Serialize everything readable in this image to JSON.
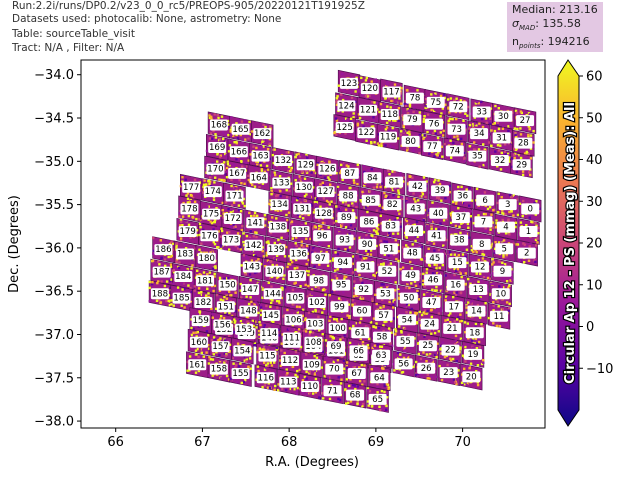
{
  "header": {
    "run": "Run:2.2i/runs/DP0.2/v23_0_0_rc5/PREOPS-905/20220121T191925Z",
    "datasets": "Datasets used: photocalib: None, astrometry: None",
    "table": "Table: sourceTable_visit",
    "tract": "Tract: N/A , Filter: N/A"
  },
  "stats": {
    "median": "Median: 213.16",
    "sigma_prefix": "σ",
    "sigma_sub": "MAD",
    "sigma_value": ": 135.58",
    "npoints_prefix": "n",
    "npoints_sub": "points",
    "npoints_value": ": 194216"
  },
  "colors": {
    "stops": [
      "#0d0887",
      "#5b02a3",
      "#9a179b",
      "#cb4678",
      "#eb7852",
      "#fbb32f",
      "#eff821"
    ],
    "vmin": -20,
    "vmax": 60
  },
  "chart_data": {
    "type": "scatter",
    "xlabel": "R.A. (Degrees)",
    "ylabel": "Dec. (Degrees)",
    "colorbar_label": "Circular Ap 12 - PS (mmag) (Meas): All",
    "xlim": [
      65.6,
      70.95
    ],
    "ylim": [
      -38.08,
      -33.83
    ],
    "xticks": [
      66,
      67,
      68,
      69,
      70
    ],
    "yticks": [
      -34.0,
      -34.5,
      -35.0,
      -35.5,
      -36.0,
      -36.5,
      -37.0,
      -37.5,
      -38.0
    ],
    "ytick_labels": [
      "−34.0",
      "−34.5",
      "−35.0",
      "−35.5",
      "−36.0",
      "−36.5",
      "−37.0",
      "−37.5",
      "−38.0"
    ],
    "colorbar_ticks": [
      -10,
      0,
      10,
      20,
      30,
      40,
      50,
      60
    ],
    "colorbar_tick_labels": [
      "−10",
      "0",
      "10",
      "20",
      "30",
      "40",
      "50",
      "60"
    ],
    "patch_ids": [
      [
        123,
        68.69,
        -34.1
      ],
      [
        120,
        68.93,
        -34.16
      ],
      [
        117,
        69.18,
        -34.2
      ],
      [
        78,
        69.45,
        -34.27
      ],
      [
        75,
        69.69,
        -34.32
      ],
      [
        72,
        69.95,
        -34.37
      ],
      [
        33,
        70.22,
        -34.43
      ],
      [
        30,
        70.47,
        -34.48
      ],
      [
        27,
        70.72,
        -34.53
      ],
      [
        124,
        68.66,
        -34.36
      ],
      [
        121,
        68.91,
        -34.41
      ],
      [
        118,
        69.16,
        -34.46
      ],
      [
        79,
        69.42,
        -34.52
      ],
      [
        76,
        69.67,
        -34.57
      ],
      [
        73,
        69.93,
        -34.63
      ],
      [
        34,
        70.19,
        -34.68
      ],
      [
        31,
        70.45,
        -34.73
      ],
      [
        28,
        70.7,
        -34.79
      ],
      [
        168,
        67.19,
        -34.58
      ],
      [
        165,
        67.44,
        -34.63
      ],
      [
        162,
        67.69,
        -34.68
      ],
      [
        125,
        68.64,
        -34.61
      ],
      [
        122,
        68.89,
        -34.67
      ],
      [
        119,
        69.14,
        -34.72
      ],
      [
        80,
        69.4,
        -34.77
      ],
      [
        77,
        69.65,
        -34.83
      ],
      [
        74,
        69.91,
        -34.88
      ],
      [
        35,
        70.17,
        -34.94
      ],
      [
        32,
        70.43,
        -34.99
      ],
      [
        29,
        70.68,
        -35.04
      ],
      [
        169,
        67.17,
        -34.84
      ],
      [
        166,
        67.42,
        -34.89
      ],
      [
        163,
        67.67,
        -34.94
      ],
      [
        132,
        67.93,
        -34.99
      ],
      [
        129,
        68.19,
        -35.04
      ],
      [
        126,
        68.44,
        -35.09
      ],
      [
        87,
        68.7,
        -35.14
      ],
      [
        84,
        68.96,
        -35.19
      ],
      [
        81,
        69.21,
        -35.24
      ],
      [
        42,
        69.48,
        -35.29
      ],
      [
        39,
        69.74,
        -35.34
      ],
      [
        36,
        70.0,
        -35.4
      ],
      [
        6,
        70.26,
        -35.45
      ],
      [
        3,
        70.52,
        -35.5
      ],
      [
        0,
        70.78,
        -35.55
      ],
      [
        170,
        67.15,
        -35.09
      ],
      [
        167,
        67.4,
        -35.14
      ],
      [
        164,
        67.65,
        -35.19
      ],
      [
        133,
        67.91,
        -35.25
      ],
      [
        130,
        68.17,
        -35.3
      ],
      [
        127,
        68.42,
        -35.35
      ],
      [
        88,
        68.68,
        -35.4
      ],
      [
        85,
        68.94,
        -35.45
      ],
      [
        82,
        69.19,
        -35.5
      ],
      [
        43,
        69.46,
        -35.55
      ],
      [
        40,
        69.72,
        -35.6
      ],
      [
        37,
        69.98,
        -35.65
      ],
      [
        7,
        70.24,
        -35.7
      ],
      [
        4,
        70.5,
        -35.76
      ],
      [
        1,
        70.76,
        -35.81
      ],
      [
        177,
        66.87,
        -35.3
      ],
      [
        174,
        67.12,
        -35.35
      ],
      [
        171,
        67.37,
        -35.4
      ],
      [
        134,
        67.89,
        -35.5
      ],
      [
        131,
        68.15,
        -35.55
      ],
      [
        128,
        68.4,
        -35.6
      ],
      [
        89,
        68.66,
        -35.65
      ],
      [
        86,
        68.92,
        -35.7
      ],
      [
        83,
        69.17,
        -35.75
      ],
      [
        44,
        69.44,
        -35.8
      ],
      [
        41,
        69.7,
        -35.86
      ],
      [
        38,
        69.96,
        -35.91
      ],
      [
        8,
        70.22,
        -35.96
      ],
      [
        5,
        70.48,
        -36.01
      ],
      [
        2,
        70.74,
        -36.06
      ],
      [
        178,
        66.85,
        -35.55
      ],
      [
        175,
        67.1,
        -35.61
      ],
      [
        172,
        67.35,
        -35.66
      ],
      [
        141,
        67.61,
        -35.71
      ],
      [
        138,
        67.87,
        -35.76
      ],
      [
        135,
        68.13,
        -35.81
      ],
      [
        96,
        68.38,
        -35.86
      ],
      [
        93,
        68.64,
        -35.91
      ],
      [
        90,
        68.9,
        -35.96
      ],
      [
        51,
        69.15,
        -36.01
      ],
      [
        48,
        69.42,
        -36.06
      ],
      [
        45,
        69.68,
        -36.12
      ],
      [
        15,
        69.94,
        -36.17
      ],
      [
        12,
        70.2,
        -36.22
      ],
      [
        9,
        70.46,
        -36.27
      ],
      [
        179,
        66.83,
        -35.81
      ],
      [
        176,
        67.08,
        -35.86
      ],
      [
        173,
        67.33,
        -35.91
      ],
      [
        142,
        67.59,
        -35.97
      ],
      [
        139,
        67.85,
        -36.02
      ],
      [
        136,
        68.11,
        -36.07
      ],
      [
        97,
        68.36,
        -36.12
      ],
      [
        94,
        68.62,
        -36.17
      ],
      [
        91,
        68.88,
        -36.22
      ],
      [
        52,
        69.13,
        -36.27
      ],
      [
        49,
        69.4,
        -36.32
      ],
      [
        46,
        69.66,
        -36.37
      ],
      [
        16,
        69.92,
        -36.43
      ],
      [
        13,
        70.18,
        -36.48
      ],
      [
        10,
        70.44,
        -36.53
      ],
      [
        186,
        66.55,
        -36.02
      ],
      [
        183,
        66.8,
        -36.07
      ],
      [
        180,
        67.05,
        -36.12
      ],
      [
        143,
        67.57,
        -36.22
      ],
      [
        140,
        67.83,
        -36.27
      ],
      [
        137,
        68.09,
        -36.32
      ],
      [
        98,
        68.34,
        -36.38
      ],
      [
        95,
        68.6,
        -36.43
      ],
      [
        92,
        68.86,
        -36.48
      ],
      [
        53,
        69.11,
        -36.53
      ],
      [
        50,
        69.38,
        -36.58
      ],
      [
        47,
        69.64,
        -36.63
      ],
      [
        17,
        69.9,
        -36.68
      ],
      [
        14,
        70.16,
        -36.73
      ],
      [
        11,
        70.42,
        -36.79
      ],
      [
        187,
        66.53,
        -36.28
      ],
      [
        184,
        66.78,
        -36.33
      ],
      [
        181,
        67.03,
        -36.38
      ],
      [
        150,
        67.29,
        -36.43
      ],
      [
        147,
        67.55,
        -36.48
      ],
      [
        144,
        67.81,
        -36.53
      ],
      [
        105,
        68.07,
        -36.58
      ],
      [
        102,
        68.32,
        -36.63
      ],
      [
        99,
        68.58,
        -36.68
      ],
      [
        60,
        68.84,
        -36.73
      ],
      [
        57,
        69.09,
        -36.78
      ],
      [
        54,
        69.36,
        -36.83
      ],
      [
        24,
        69.62,
        -36.88
      ],
      [
        21,
        69.88,
        -36.93
      ],
      [
        18,
        70.14,
        -36.98
      ],
      [
        188,
        66.51,
        -36.53
      ],
      [
        185,
        66.76,
        -36.58
      ],
      [
        182,
        67.01,
        -36.63
      ],
      [
        151,
        67.27,
        -36.68
      ],
      [
        148,
        67.53,
        -36.73
      ],
      [
        145,
        67.79,
        -36.78
      ],
      [
        106,
        68.05,
        -36.83
      ],
      [
        103,
        68.3,
        -36.88
      ],
      [
        100,
        68.56,
        -36.93
      ],
      [
        61,
        68.82,
        -36.98
      ],
      [
        58,
        69.07,
        -37.03
      ],
      [
        55,
        69.34,
        -37.08
      ],
      [
        25,
        69.6,
        -37.13
      ],
      [
        22,
        69.86,
        -37.18
      ],
      [
        19,
        70.12,
        -37.23
      ],
      [
        152,
        67.25,
        -36.94
      ],
      [
        149,
        67.51,
        -36.99
      ],
      [
        146,
        67.77,
        -37.04
      ],
      [
        107,
        68.03,
        -37.09
      ],
      [
        104,
        68.28,
        -37.14
      ],
      [
        101,
        68.54,
        -37.19
      ],
      [
        62,
        68.8,
        -37.24
      ],
      [
        59,
        69.05,
        -37.29
      ],
      [
        56,
        69.32,
        -37.34
      ],
      [
        26,
        69.58,
        -37.39
      ],
      [
        23,
        69.84,
        -37.44
      ],
      [
        20,
        70.1,
        -37.49
      ],
      [
        159,
        66.98,
        -36.84
      ],
      [
        156,
        67.23,
        -36.89
      ],
      [
        153,
        67.48,
        -36.94
      ],
      [
        160,
        66.96,
        -37.09
      ],
      [
        157,
        67.21,
        -37.14
      ],
      [
        154,
        67.46,
        -37.19
      ],
      [
        115,
        67.75,
        -37.25
      ],
      [
        112,
        68.01,
        -37.3
      ],
      [
        109,
        68.26,
        -37.35
      ],
      [
        70,
        68.52,
        -37.4
      ],
      [
        67,
        68.78,
        -37.45
      ],
      [
        64,
        69.04,
        -37.5
      ],
      [
        161,
        66.94,
        -37.35
      ],
      [
        158,
        67.19,
        -37.4
      ],
      [
        155,
        67.44,
        -37.45
      ],
      [
        116,
        67.73,
        -37.5
      ],
      [
        113,
        67.99,
        -37.55
      ],
      [
        110,
        68.24,
        -37.6
      ],
      [
        71,
        68.5,
        -37.65
      ],
      [
        68,
        68.76,
        -37.7
      ],
      [
        65,
        69.02,
        -37.75
      ],
      [
        114,
        67.77,
        -36.99
      ],
      [
        111,
        68.03,
        -37.04
      ],
      [
        108,
        68.28,
        -37.09
      ],
      [
        69,
        68.54,
        -37.14
      ],
      [
        66,
        68.8,
        -37.19
      ],
      [
        63,
        69.06,
        -37.24
      ]
    ]
  }
}
